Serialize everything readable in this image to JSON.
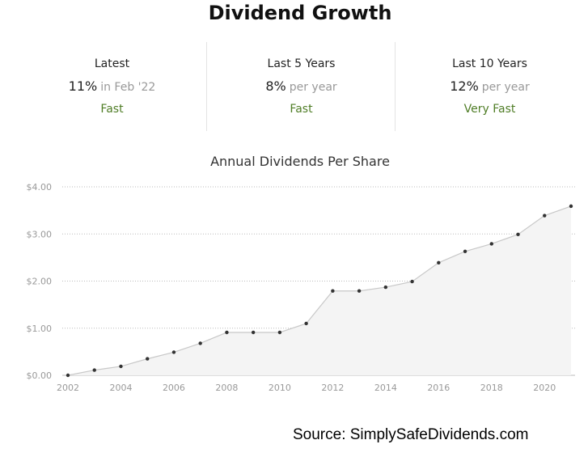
{
  "page_title": "Dividend Growth",
  "stats": [
    {
      "label": "Latest",
      "value": "11%",
      "note": "in Feb '22",
      "rating": "Fast"
    },
    {
      "label": "Last 5 Years",
      "value": "8%",
      "note": "per year",
      "rating": "Fast"
    },
    {
      "label": "Last 10 Years",
      "value": "12%",
      "note": "per year",
      "rating": "Very Fast"
    }
  ],
  "colors": {
    "rating": "#4f7d26",
    "line": "#c8c8c8",
    "area": "#f4f4f4",
    "point": "#333333",
    "grid": "#bbbbbb"
  },
  "chart_data": {
    "type": "area",
    "title": "Annual Dividends Per Share",
    "xlabel": "",
    "ylabel": "",
    "x": [
      2002,
      2003,
      2004,
      2005,
      2006,
      2007,
      2008,
      2009,
      2010,
      2011,
      2012,
      2013,
      2014,
      2015,
      2016,
      2017,
      2018,
      2019,
      2020,
      2021
    ],
    "values": [
      0.0,
      0.11,
      0.19,
      0.35,
      0.49,
      0.68,
      0.91,
      0.91,
      0.91,
      1.1,
      1.79,
      1.79,
      1.87,
      1.99,
      2.39,
      2.63,
      2.79,
      2.99,
      3.39,
      3.59
    ],
    "ylim": [
      0,
      4
    ],
    "yticks": [
      0,
      1,
      2,
      3,
      4
    ],
    "ytick_labels": [
      "$0.00",
      "$1.00",
      "$2.00",
      "$3.00",
      "$4.00"
    ],
    "xticks": [
      2002,
      2004,
      2006,
      2008,
      2010,
      2012,
      2014,
      2016,
      2018,
      2020
    ],
    "xtick_labels": [
      "2002",
      "2004",
      "2006",
      "2008",
      "2010",
      "2012",
      "2014",
      "2016",
      "2018",
      "2020"
    ],
    "grid": "horizontal-dotted",
    "legend": "none"
  },
  "source": "Source: SimplySafeDividends.com"
}
